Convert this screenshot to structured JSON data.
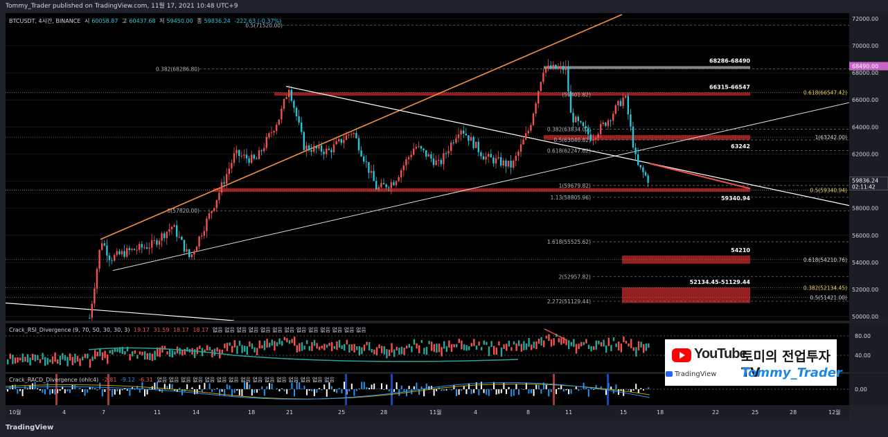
{
  "header": {
    "publisher_line": "Tommy_Trader published on TradingView.com, 11월 17, 2021 10:48 UTC+9"
  },
  "symbol_line": {
    "symbol": "BTCUSDT, 4시간, BINANCE",
    "open_label": "시",
    "open": "60058.87",
    "high_label": "고",
    "high": "60437.68",
    "low_label": "저",
    "low": "59450.00",
    "close_label": "종",
    "close": "59836.24",
    "change": "-222.63 (-0.37%)"
  },
  "rsi_panel": {
    "title": "Crack_RSI_Divergence (9, 70, 50, 30, 30, 3)",
    "values": [
      "19.17",
      "31.59",
      "18.17",
      "18.17"
    ],
    "na_values": [
      "없음",
      "없음",
      "없음",
      "없음",
      "없음",
      "없음",
      "없음",
      "없음",
      "없음",
      "없음",
      "없음",
      "없음",
      "없음"
    ]
  },
  "macd_panel": {
    "title": "Crack_RACD_Divergence (ohlc4)",
    "values": [
      "-2.81",
      "-9.12",
      "-6.31"
    ],
    "na_values": [
      "없음",
      "없음",
      "없음",
      "없음",
      "없음",
      "없음",
      "없음",
      "없음",
      "없음",
      "없음",
      "없음",
      "없음",
      "없음",
      "없음",
      "없음"
    ]
  },
  "footer": {
    "brand": "TradingView"
  },
  "brand_box": {
    "youtube": "YouTube",
    "channel": "토미의 전업투자TV",
    "tradingview": "TradingView",
    "handle": "Tommy_Trader"
  },
  "colors": {
    "up": "#ef5350",
    "down": "#26c6da",
    "zone": "#c62828",
    "wick_up": "#ef5350",
    "orange_line": "#f5913e",
    "white_line": "#ffffff",
    "price_label": "#c864c8"
  },
  "chart_data": {
    "type": "candlestick",
    "price_axis": {
      "ticks": [
        "72000.00",
        "70000.00",
        "68000.00",
        "66000.00",
        "64000.00",
        "62000.00",
        "60000.00",
        "58000.00",
        "56000.00",
        "54000.00",
        "52000.00",
        "50000.00"
      ],
      "ylim": [
        49800,
        72300
      ]
    },
    "time_axis": {
      "ticks": [
        "10월",
        "4",
        "7",
        "11",
        "14",
        "18",
        "21",
        "25",
        "28",
        "11월",
        "4",
        "8",
        "11",
        "15",
        "18",
        "22",
        "25",
        "28",
        "12월"
      ]
    },
    "current_price": {
      "value": "59836.24",
      "countdown": "02:11:42"
    },
    "highlight_price": "68490.00",
    "fib_left": [
      {
        "label": "0.5(71520.00)",
        "value": 71520
      },
      {
        "label": "0.382(68286.80)",
        "value": 68286.8
      },
      {
        "label": "0(57820.00)",
        "value": 57820
      }
    ],
    "fib_right": [
      {
        "label": "0.382(63834.02)",
        "value": 63834
      },
      {
        "label": "0.5(63040.82)",
        "value": 63040
      },
      {
        "label": "0.618(62247.62)",
        "value": 62247
      },
      {
        "label": "1(59679.82)",
        "value": 59679
      },
      {
        "label": "1.13(58805.96)",
        "value": 58805
      },
      {
        "label": "1.618(55525.62)",
        "value": 55525
      },
      {
        "label": "2(52957.82)",
        "value": 52957
      },
      {
        "label": "2.272(51129.44)",
        "value": 51129
      }
    ],
    "fib_axis_side": [
      {
        "label": "0.618(66547.42)",
        "value": 66547,
        "color": "#f0d060"
      },
      {
        "label": "1(63242.00)",
        "value": 63242,
        "color": "#d1d4dc"
      },
      {
        "label": "0.5(59340.94)",
        "value": 59340,
        "color": "#f0d060"
      },
      {
        "label": "0.618(54210.76)",
        "value": 54210,
        "color": "#d1d4dc"
      },
      {
        "label": "0.382(52134.45)",
        "value": 52134,
        "color": "#f0d060"
      },
      {
        "label": "0.5(51421.00)",
        "value": 51421,
        "color": "#d1d4dc"
      }
    ],
    "zones": [
      {
        "label": "68286-68490",
        "low": 68286,
        "high": 68490,
        "kind": "grey"
      },
      {
        "label": "66315-66547",
        "low": 66315,
        "high": 66547,
        "kind": "red"
      },
      {
        "label": "63242",
        "low": 63040,
        "high": 63400,
        "kind": "red"
      },
      {
        "label": "59340.94",
        "low": 59200,
        "high": 59480,
        "kind": "red"
      },
      {
        "label": "54210",
        "low": 53900,
        "high": 54500,
        "kind": "red"
      },
      {
        "label": "52134.45-51129.44",
        "low": 51000,
        "high": 52150,
        "kind": "red"
      }
    ],
    "inner_labels": [
      {
        "label": "(59401.82)",
        "value": 66400
      }
    ],
    "rsi_axis_ticks": [
      "80.00",
      "40.00"
    ],
    "macd_axis_ticks": [
      "0.00"
    ]
  }
}
